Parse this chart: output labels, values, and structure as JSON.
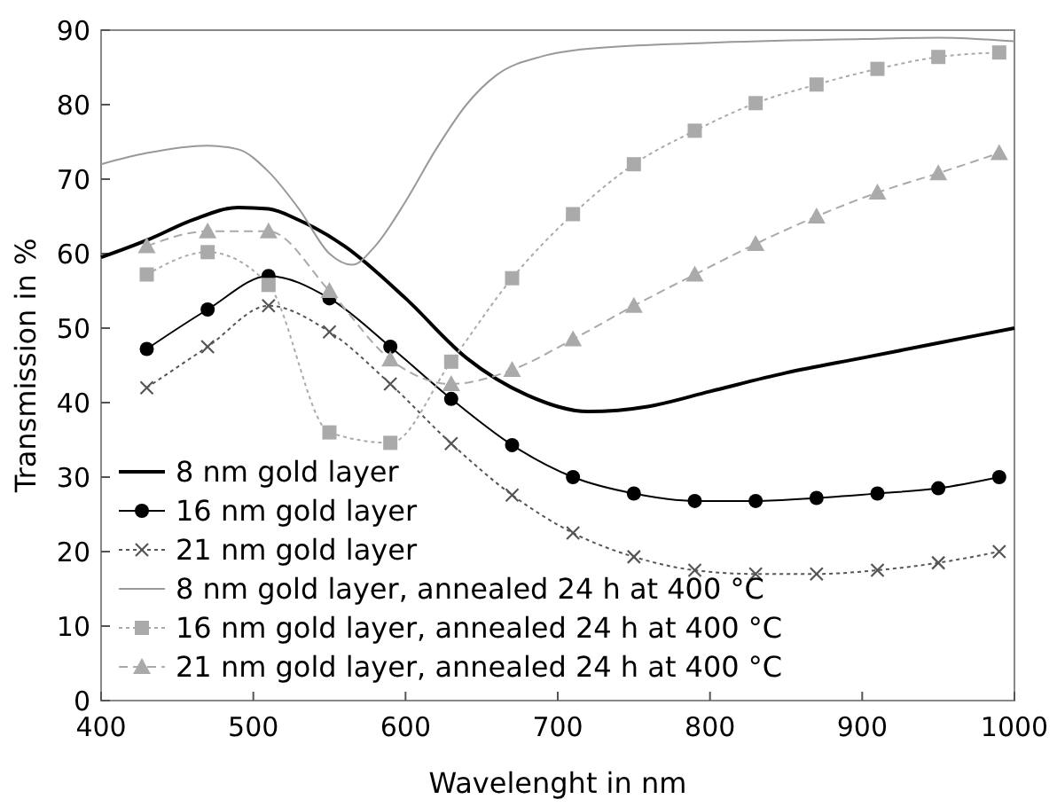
{
  "chart_data": {
    "type": "line",
    "xlabel": "Wavelenght in nm",
    "ylabel": "Transmission in %",
    "xlim": [
      400,
      1000
    ],
    "ylim": [
      0,
      90
    ],
    "xticks": [
      400,
      500,
      600,
      700,
      800,
      900,
      1000
    ],
    "yticks": [
      0,
      10,
      20,
      30,
      40,
      50,
      60,
      70,
      80,
      90
    ],
    "legend": "bottom left",
    "grid": false,
    "series": [
      {
        "name": "8 nm gold layer",
        "color": "#000000",
        "marker": "none",
        "line_style": "solid",
        "x": [
          400,
          430,
          460,
          490,
          510,
          530,
          560,
          600,
          640,
          680,
          720,
          760,
          800,
          850,
          900,
          950,
          1000
        ],
        "values": [
          59.5,
          61.8,
          64.5,
          66.2,
          66,
          64.5,
          61,
          54,
          46,
          41,
          38.8,
          39.5,
          41.5,
          44,
          46,
          48,
          50
        ]
      },
      {
        "name": "16 nm gold layer",
        "color": "#000000",
        "marker": "circle",
        "line_style": "solid",
        "x": [
          430,
          470,
          510,
          550,
          590,
          630,
          670,
          710,
          750,
          790,
          830,
          870,
          910,
          950,
          990
        ],
        "values": [
          47.2,
          52.5,
          57,
          54,
          47.5,
          40.5,
          34.3,
          30,
          27.8,
          26.8,
          26.8,
          27.2,
          27.8,
          28.5,
          30
        ]
      },
      {
        "name": "21 nm gold layer",
        "color": "#555555",
        "marker": "cross",
        "line_style": "dotted",
        "x": [
          430,
          470,
          510,
          550,
          590,
          630,
          670,
          710,
          750,
          790,
          830,
          870,
          910,
          950,
          990
        ],
        "values": [
          42,
          47.5,
          53,
          49.5,
          42.5,
          34.5,
          27.6,
          22.5,
          19.3,
          17.5,
          17,
          17,
          17.5,
          18.5,
          20
        ]
      },
      {
        "name": "8 nm gold layer, annealed 24 h at 400 °C",
        "color": "#999999",
        "marker": "none",
        "line_style": "solid",
        "x": [
          400,
          430,
          470,
          490,
          510,
          530,
          550,
          565,
          580,
          600,
          620,
          640,
          660,
          690,
          720,
          800,
          900,
          950,
          1000
        ],
        "values": [
          72,
          73.5,
          74.5,
          74,
          71,
          66,
          60,
          58.5,
          61,
          67,
          74,
          80,
          84,
          86.5,
          87.5,
          88.3,
          88.8,
          89,
          88.5
        ]
      },
      {
        "name": "16 nm gold layer, annealed 24 h at 400 °C",
        "color": "#aaaaaa",
        "marker": "square",
        "line_style": "dotted",
        "x": [
          430,
          470,
          510,
          550,
          590,
          630,
          670,
          710,
          750,
          790,
          830,
          870,
          910,
          950,
          990
        ],
        "values": [
          57.2,
          60.2,
          55.8,
          36,
          34.6,
          45.5,
          56.7,
          65.3,
          72,
          76.5,
          80.2,
          82.7,
          84.8,
          86.4,
          87
        ]
      },
      {
        "name": "21 nm gold layer, annealed 24 h at 400 °C",
        "color": "#aaaaaa",
        "marker": "triangle",
        "line_style": "dashed",
        "x": [
          430,
          470,
          510,
          550,
          590,
          630,
          670,
          710,
          750,
          790,
          830,
          870,
          910,
          950,
          990
        ],
        "values": [
          61,
          63,
          63,
          55,
          45.8,
          42.5,
          44.4,
          48.5,
          53,
          57.2,
          61.3,
          65,
          68.2,
          70.8,
          73.5
        ]
      }
    ]
  }
}
